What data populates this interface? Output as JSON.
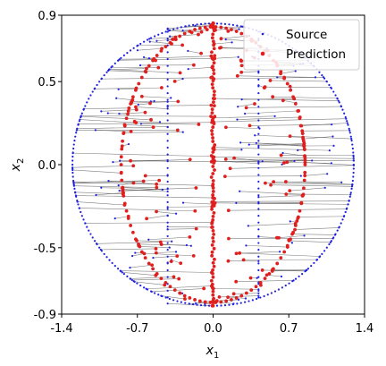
{
  "chart_data": {
    "type": "scatter",
    "xlabel": "x",
    "xlabel_sub": "1",
    "ylabel": "x",
    "ylabel_sub": "2",
    "xlim": [
      -1.4,
      1.4
    ],
    "ylim": [
      -0.9,
      0.9
    ],
    "x_ticks": [
      -1.4,
      -0.7,
      0.0,
      0.7,
      1.4
    ],
    "x_tick_labels": [
      "-1.4",
      "-0.7",
      "0.0",
      "0.7",
      "1.4"
    ],
    "y_ticks": [
      -0.9,
      -0.5,
      0.0,
      0.5,
      0.9
    ],
    "y_tick_labels": [
      "-0.9",
      "-0.5",
      "0.0",
      "0.5",
      "0.9"
    ],
    "grid": false,
    "legend_position": "top-right",
    "series": [
      {
        "name": "Source",
        "color": "#1f1fe0",
        "marker": "small dot"
      },
      {
        "name": "Prediction",
        "color": "#e01f1f",
        "marker": "dot"
      }
    ],
    "connector_color": "#555555",
    "source_shape": {
      "ellipse": {
        "cx": 0.0,
        "cy": 0.0,
        "rx": 1.3,
        "ry": 0.85
      },
      "vertical_lines_x": [
        -0.42,
        0.42
      ]
    },
    "prediction_shape": {
      "ellipse": {
        "cx": 0.0,
        "cy": 0.0,
        "rx": 0.85,
        "ry": 0.83
      },
      "vertical_line_x": 0.0
    },
    "pairs_per_side": 110
  }
}
